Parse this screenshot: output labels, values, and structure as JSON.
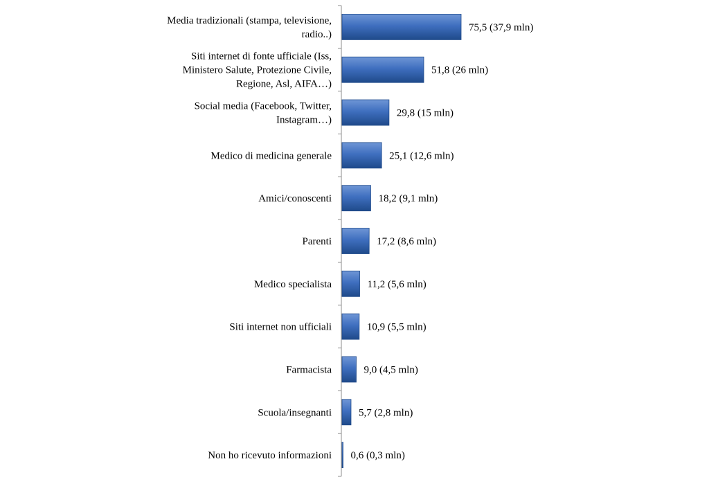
{
  "chart_data": {
    "type": "bar",
    "orientation": "horizontal",
    "categories": [
      [
        "Media tradizionali (stampa, televisione,",
        "radio..)"
      ],
      [
        "Siti internet di fonte ufficiale (Iss,",
        "Ministero Salute, Protezione Civile,",
        "Regione, Asl, AIFA…)"
      ],
      [
        "Social media (Facebook, Twitter,",
        "Instagram…)"
      ],
      [
        "Medico di medicina generale"
      ],
      [
        "Amici/conoscenti"
      ],
      [
        "Parenti"
      ],
      [
        "Medico specialista"
      ],
      [
        "Siti internet non ufficiali"
      ],
      [
        "Farmacista"
      ],
      [
        "Scuola/insegnanti"
      ],
      [
        "Non ho ricevuto informazioni"
      ]
    ],
    "values": [
      75.5,
      51.8,
      29.8,
      25.1,
      18.2,
      17.2,
      11.2,
      10.9,
      9.0,
      5.7,
      0.6
    ],
    "data_labels": [
      "75,5 (37,9 mln)",
      "51,8 (26 mln)",
      "29,8 (15 mln)",
      "25,1 (12,6 mln)",
      "18,2 (9,1 mln)",
      "17,2 (8,6 mln)",
      "11,2 (5,6 mln)",
      "10,9 (5,5 mln)",
      "9,0 (4,5 mln)",
      "5,7 (2,8 mln)",
      "0,6 (0,3 mln)"
    ],
    "xlim": [
      0,
      75.5
    ],
    "grid": false,
    "legend": "none",
    "colors": {
      "bar": "#3f6fbf",
      "bar_dark": "#1f4a8a",
      "bar_light": "#6f96d6",
      "axis": "#8c8c8c"
    }
  }
}
